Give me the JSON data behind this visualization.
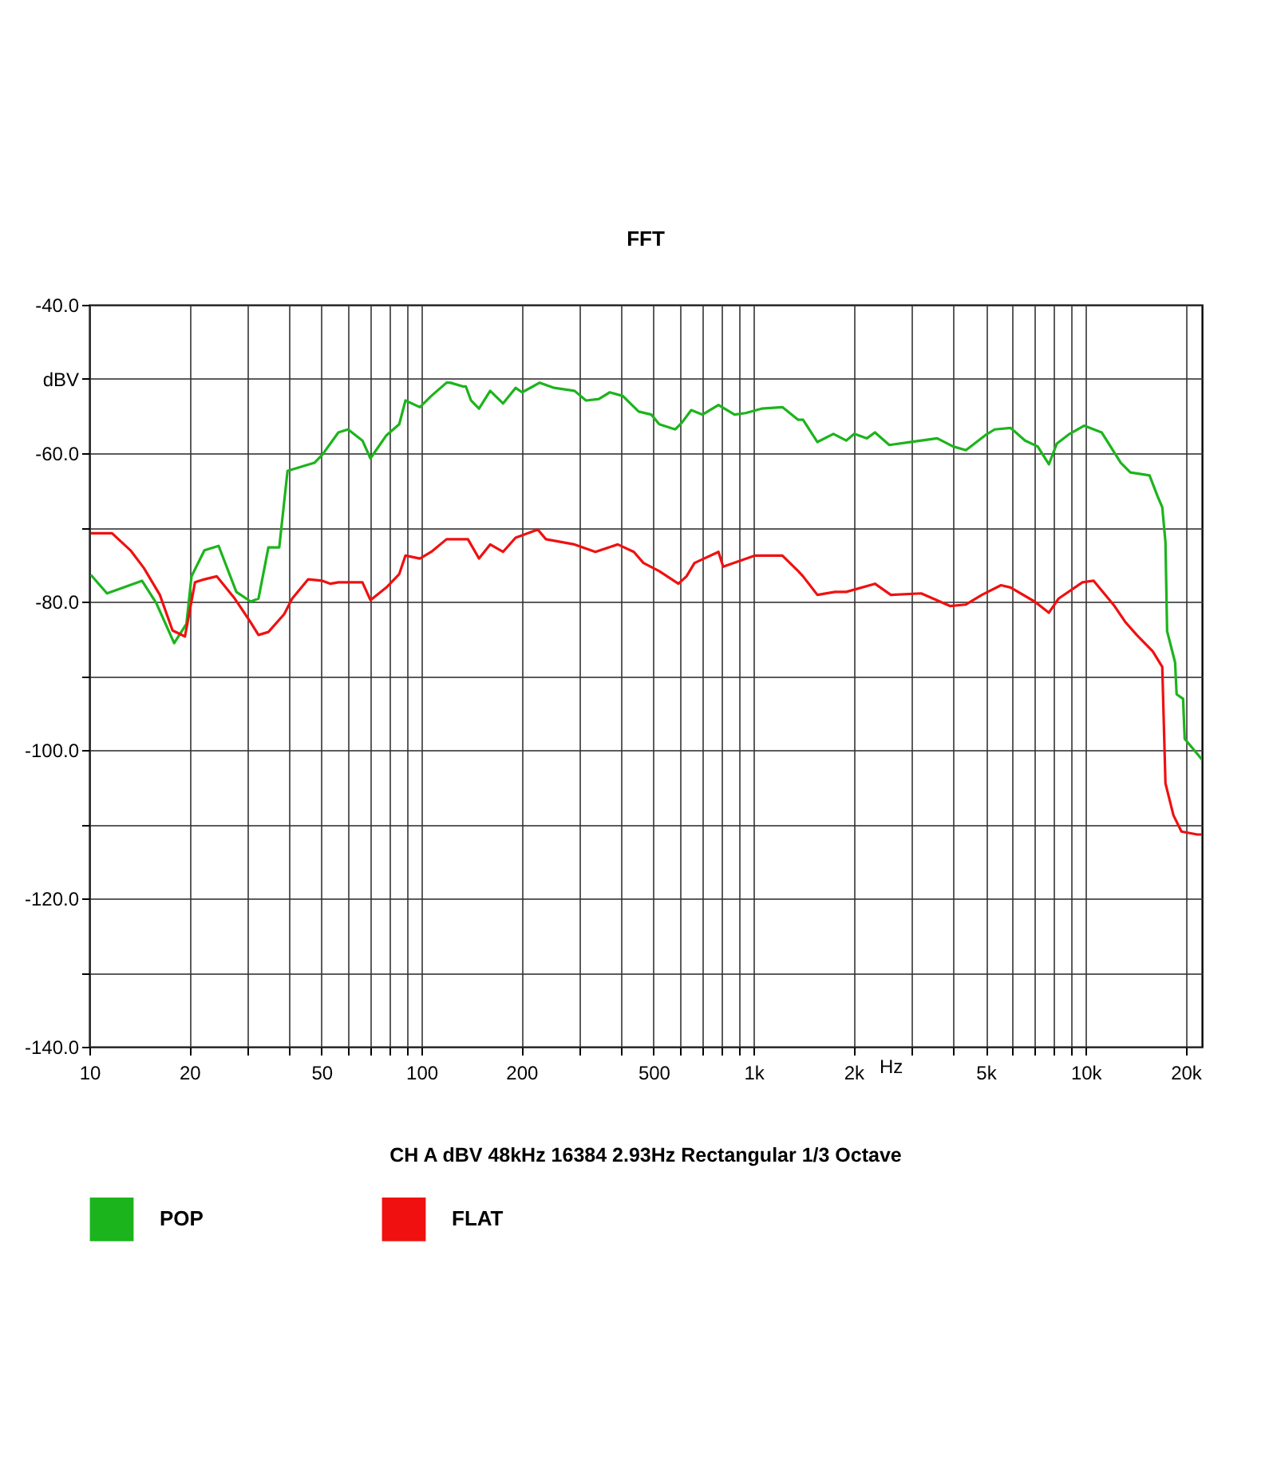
{
  "chart_data": {
    "type": "line",
    "title": "FFT",
    "xlabel": "Hz",
    "ylabel": null,
    "annotations": [
      "CH A  dBV  48kHz  16384  2.93Hz  Rectangular  1/3 Octave"
    ],
    "log": "x",
    "grid": true,
    "legend": "bottom",
    "marker": "none",
    "line_style": "solid",
    "xlim": [
      10,
      22400
    ],
    "ylim": [
      -140,
      -40
    ],
    "xticks": [
      {
        "value": 10,
        "label": "10"
      },
      {
        "value": 20,
        "label": "20"
      },
      {
        "value": 30,
        "label": null
      },
      {
        "value": 40,
        "label": null
      },
      {
        "value": 50,
        "label": "50"
      },
      {
        "value": 60,
        "label": null
      },
      {
        "value": 70,
        "label": null
      },
      {
        "value": 80,
        "label": null
      },
      {
        "value": 90,
        "label": null
      },
      {
        "value": 100,
        "label": "100"
      },
      {
        "value": 200,
        "label": "200"
      },
      {
        "value": 300,
        "label": null
      },
      {
        "value": 400,
        "label": null
      },
      {
        "value": 500,
        "label": "500"
      },
      {
        "value": 600,
        "label": null
      },
      {
        "value": 700,
        "label": null
      },
      {
        "value": 800,
        "label": null
      },
      {
        "value": 900,
        "label": null
      },
      {
        "value": 1000,
        "label": "1k"
      },
      {
        "value": 2000,
        "label": "2k"
      },
      {
        "value": 3000,
        "label": null
      },
      {
        "value": 4000,
        "label": null
      },
      {
        "value": 5000,
        "label": "5k"
      },
      {
        "value": 6000,
        "label": null
      },
      {
        "value": 7000,
        "label": null
      },
      {
        "value": 8000,
        "label": null
      },
      {
        "value": 9000,
        "label": null
      },
      {
        "value": 10000,
        "label": "10k"
      },
      {
        "value": 20000,
        "label": "20k"
      }
    ],
    "yticks": [
      {
        "value": -40,
        "label": "-40.0"
      },
      {
        "value": -50,
        "label": "dBV"
      },
      {
        "value": -60,
        "label": "-60.0"
      },
      {
        "value": -70,
        "label": null
      },
      {
        "value": -80,
        "label": "-80.0"
      },
      {
        "value": -90,
        "label": null
      },
      {
        "value": -100,
        "label": "-100.0"
      },
      {
        "value": -110,
        "label": null
      },
      {
        "value": -120,
        "label": "-120.0"
      },
      {
        "value": -130,
        "label": null
      },
      {
        "value": -140,
        "label": "-140.0"
      }
    ],
    "series": [
      {
        "name": "POP",
        "color": "#1cb41c",
        "x": [
          10.1,
          11.3,
          14.4,
          15.9,
          18.0,
          19.6,
          20.3,
          22.2,
          24.5,
          27.7,
          30.6,
          32.3,
          34.6,
          37.3,
          39.5,
          47.6,
          50.3,
          56.2,
          60.1,
          66.4,
          70.2,
          78.4,
          85.7,
          89.5,
          98.9,
          107,
          119,
          122,
          133,
          136,
          141,
          149,
          161,
          176,
          192,
          201,
          227,
          251,
          289,
          313,
          342,
          369,
          404,
          451,
          492,
          520,
          581,
          608,
          649,
          702,
          784,
          876,
          946,
          1057,
          1221,
          1363,
          1409,
          1557,
          1740,
          1901,
          2010,
          2195,
          2320,
          2563,
          2960,
          3572,
          3990,
          4360,
          4980,
          5320,
          5940,
          6570,
          7170,
          7750,
          8190,
          8950,
          9890,
          11170,
          12760,
          13630,
          15570,
          16460,
          17010,
          17390,
          17590,
          18590,
          18790,
          19650,
          19870,
          22400
        ],
        "values": [
          -76.4,
          -78.9,
          -77.2,
          -80.2,
          -85.6,
          -83.0,
          -76.6,
          -73.1,
          -72.5,
          -78.7,
          -80.0,
          -79.6,
          -72.7,
          -72.7,
          -62.4,
          -61.3,
          -60.2,
          -57.2,
          -56.8,
          -58.3,
          -60.7,
          -57.6,
          -56.1,
          -52.9,
          -53.8,
          -52.3,
          -50.5,
          -50.5,
          -51.0,
          -51.0,
          -52.9,
          -54.0,
          -51.6,
          -53.3,
          -51.2,
          -51.8,
          -50.5,
          -51.2,
          -51.6,
          -52.9,
          -52.7,
          -51.8,
          -52.3,
          -54.4,
          -54.8,
          -56.1,
          -56.8,
          -55.9,
          -54.2,
          -54.8,
          -53.5,
          -54.8,
          -54.6,
          -54.0,
          -53.8,
          -55.5,
          -55.5,
          -58.5,
          -57.4,
          -58.3,
          -57.4,
          -58.0,
          -57.2,
          -58.9,
          -58.5,
          -58.0,
          -59.1,
          -59.6,
          -57.6,
          -56.8,
          -56.6,
          -58.3,
          -59.1,
          -61.5,
          -58.7,
          -57.4,
          -56.3,
          -57.2,
          -61.3,
          -62.6,
          -63.0,
          -65.8,
          -67.3,
          -72.0,
          -84.0,
          -88.2,
          -92.5,
          -93.1,
          -98.5,
          -101.3
        ]
      },
      {
        "name": "FLAT",
        "color": "#f01010",
        "x": [
          10.1,
          11.7,
          13.3,
          14.6,
          16.3,
          17.8,
          19.4,
          20.8,
          22.2,
          24.2,
          27.4,
          30.6,
          32.3,
          34.6,
          38.6,
          40.8,
          45.6,
          50.3,
          53.2,
          56.2,
          66.4,
          70.2,
          78.4,
          85.7,
          89.5,
          98.9,
          107,
          119,
          122,
          138,
          149,
          161,
          176,
          192,
          224,
          237,
          289,
          334,
          390,
          436,
          466,
          520,
          594,
          628,
          664,
          784,
          810,
          1011,
          1221,
          1363,
          1409,
          1557,
          1759,
          1901,
          2320,
          2591,
          3197,
          3903,
          4360,
          4870,
          5560,
          5940,
          7020,
          7750,
          8290,
          9780,
          10570,
          12210,
          13190,
          14250,
          15920,
          17010,
          17390,
          18380,
          19430,
          21700,
          22400
        ],
        "values": [
          -70.8,
          -70.8,
          -73.1,
          -75.5,
          -79.1,
          -83.9,
          -84.7,
          -77.4,
          -77.0,
          -76.6,
          -79.6,
          -82.8,
          -84.5,
          -84.1,
          -81.7,
          -79.6,
          -77.0,
          -77.2,
          -77.6,
          -77.4,
          -77.4,
          -79.8,
          -78.1,
          -76.3,
          -73.8,
          -74.2,
          -73.3,
          -71.6,
          -71.6,
          -71.6,
          -74.2,
          -72.3,
          -73.3,
          -71.4,
          -70.3,
          -71.6,
          -72.3,
          -73.3,
          -72.3,
          -73.3,
          -74.8,
          -75.9,
          -77.6,
          -76.6,
          -74.8,
          -73.3,
          -75.3,
          -73.8,
          -73.8,
          -75.9,
          -76.6,
          -79.1,
          -78.7,
          -78.7,
          -77.6,
          -79.1,
          -78.9,
          -80.6,
          -80.4,
          -79.1,
          -77.8,
          -78.1,
          -80.0,
          -81.5,
          -79.6,
          -77.4,
          -77.2,
          -80.6,
          -82.8,
          -84.5,
          -86.7,
          -88.8,
          -104.5,
          -108.8,
          -111.0,
          -111.4,
          -111.4
        ]
      }
    ]
  }
}
